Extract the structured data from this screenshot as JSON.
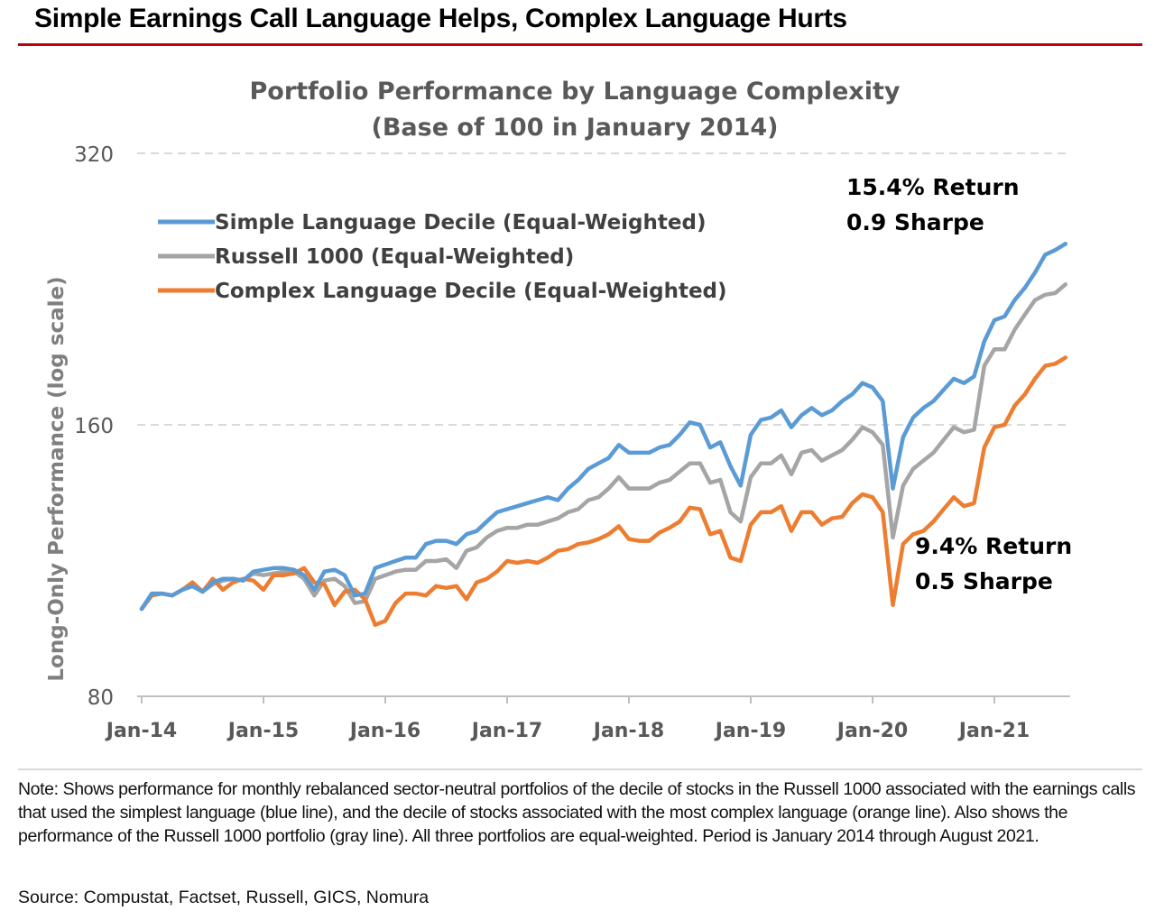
{
  "headline": "Simple Earnings Call Language Helps, Complex Language Hurts",
  "note": "Note: Shows performance for monthly rebalanced sector-neutral portfolios of the decile of stocks in the Russell 1000 associated with the earnings calls that used the simplest language (blue line), and the decile of stocks associated with the most complex language (orange line). Also shows the performance of the Russell 1000 portfolio (gray line). All three portfolios are equal-weighted. Period is January 2014 through August 2021.",
  "source": "Source: Compustat, Factset, Russell, GICS, Nomura",
  "colors": {
    "simple": "#5b9bd5",
    "russell": "#a5a5a5",
    "complex": "#ed7d31",
    "accent": "#c0000c"
  },
  "chart_data": {
    "type": "line",
    "title": "Portfolio Performance by Language Complexity",
    "subtitle": "(Base of 100 in January 2014)",
    "ylabel": "Long-Only Performance (log scale)",
    "xlabel": "",
    "y_scale": "log",
    "ylim": [
      80,
      320
    ],
    "yticks": [
      80,
      160,
      320
    ],
    "x_range": [
      "2014-01",
      "2021-08"
    ],
    "x_ticks": [
      "Jan-14",
      "Jan-15",
      "Jan-16",
      "Jan-17",
      "Jan-18",
      "Jan-19",
      "Jan-20",
      "Jan-21"
    ],
    "grid": "horizontal dashed",
    "legend_position": "top-left",
    "x": [
      "2014-01",
      "2014-02",
      "2014-03",
      "2014-04",
      "2014-05",
      "2014-06",
      "2014-07",
      "2014-08",
      "2014-09",
      "2014-10",
      "2014-11",
      "2014-12",
      "2015-01",
      "2015-02",
      "2015-03",
      "2015-04",
      "2015-05",
      "2015-06",
      "2015-07",
      "2015-08",
      "2015-09",
      "2015-10",
      "2015-11",
      "2015-12",
      "2016-01",
      "2016-02",
      "2016-03",
      "2016-04",
      "2016-05",
      "2016-06",
      "2016-07",
      "2016-08",
      "2016-09",
      "2016-10",
      "2016-11",
      "2016-12",
      "2017-01",
      "2017-02",
      "2017-03",
      "2017-04",
      "2017-05",
      "2017-06",
      "2017-07",
      "2017-08",
      "2017-09",
      "2017-10",
      "2017-11",
      "2017-12",
      "2018-01",
      "2018-02",
      "2018-03",
      "2018-04",
      "2018-05",
      "2018-06",
      "2018-07",
      "2018-08",
      "2018-09",
      "2018-10",
      "2018-11",
      "2018-12",
      "2019-01",
      "2019-02",
      "2019-03",
      "2019-04",
      "2019-05",
      "2019-06",
      "2019-07",
      "2019-08",
      "2019-09",
      "2019-10",
      "2019-11",
      "2019-12",
      "2020-01",
      "2020-02",
      "2020-03",
      "2020-04",
      "2020-05",
      "2020-06",
      "2020-07",
      "2020-08",
      "2020-09",
      "2020-10",
      "2020-11",
      "2020-12",
      "2021-01",
      "2021-02",
      "2021-03",
      "2021-04",
      "2021-05",
      "2021-06",
      "2021-07",
      "2021-08"
    ],
    "series": [
      {
        "name": "Simple Language Decile (Equal-Weighted)",
        "color": "#5b9bd5",
        "values": [
          100,
          104,
          104,
          103.5,
          105,
          106,
          104.5,
          107,
          108,
          108,
          107.5,
          110,
          110.5,
          111,
          111,
          110.5,
          109,
          105,
          110,
          110.5,
          109,
          103.5,
          104,
          111,
          112,
          113,
          114,
          114,
          118,
          119,
          119,
          118,
          121,
          122,
          125,
          128,
          129,
          130,
          131,
          132,
          133,
          132,
          136,
          139,
          143,
          145,
          147,
          152,
          149,
          149,
          149,
          151,
          152,
          156,
          161,
          160,
          151,
          153,
          144,
          137,
          156,
          162,
          163,
          166,
          159,
          164,
          167,
          164,
          166,
          170,
          173,
          178,
          176,
          170,
          136,
          155,
          163,
          167,
          170,
          175,
          180,
          178,
          181,
          198,
          209,
          211,
          220,
          227,
          236,
          247,
          250,
          254
        ]
      },
      {
        "name": "Russell 1000 (Equal-Weighted)",
        "color": "#a5a5a5",
        "values": [
          100,
          104,
          104,
          103.5,
          105,
          106,
          104.5,
          106.5,
          107.5,
          108,
          107.5,
          109.5,
          109,
          109.5,
          110,
          110,
          108,
          103.5,
          107.5,
          108,
          106,
          101.5,
          102,
          108,
          109,
          110,
          110.5,
          110.5,
          113,
          113,
          113.5,
          111,
          116,
          117,
          120,
          122,
          123,
          123,
          124,
          124,
          125,
          126,
          128,
          129,
          132,
          133,
          136,
          140,
          136,
          136,
          136,
          138,
          139,
          142,
          145,
          145,
          138,
          139,
          128,
          125,
          140,
          145,
          145,
          148,
          141,
          149,
          150,
          146,
          148,
          150,
          154,
          159,
          157,
          152,
          120,
          137,
          143,
          146,
          149,
          154,
          159,
          157,
          158,
          186,
          194,
          194,
          204,
          212,
          220,
          223,
          224,
          229
        ]
      },
      {
        "name": "Complex Language Decile (Equal-Weighted)",
        "color": "#ed7d31",
        "values": [
          100,
          103.5,
          104,
          103.5,
          105,
          107,
          104.5,
          108,
          105,
          107,
          108,
          107.5,
          105,
          109,
          109,
          109.5,
          111,
          107,
          106.5,
          101,
          104.5,
          105,
          102.5,
          96,
          97,
          101.5,
          104,
          104,
          103.5,
          106,
          105.5,
          106,
          102.5,
          107,
          108,
          110,
          113,
          112.5,
          113,
          112.5,
          114,
          116,
          116.5,
          118,
          118.5,
          119.5,
          121,
          123.5,
          119.5,
          119,
          119,
          121.5,
          123,
          125,
          129.5,
          129,
          121,
          122,
          114,
          113,
          124,
          128,
          128,
          130,
          122,
          128,
          128,
          124,
          126,
          126.5,
          131,
          134,
          133,
          128,
          101,
          118,
          121,
          122,
          125,
          129,
          133,
          130,
          131,
          151,
          159,
          160,
          168,
          173,
          180,
          186,
          187,
          190
        ]
      }
    ],
    "annotations": [
      {
        "lines": [
          "15.4% Return",
          "0.9 Sharpe"
        ],
        "series": "Simple Language Decile (Equal-Weighted)"
      },
      {
        "lines": [
          "9.4% Return",
          "0.5 Sharpe"
        ],
        "series": "Complex Language Decile (Equal-Weighted)"
      }
    ]
  }
}
